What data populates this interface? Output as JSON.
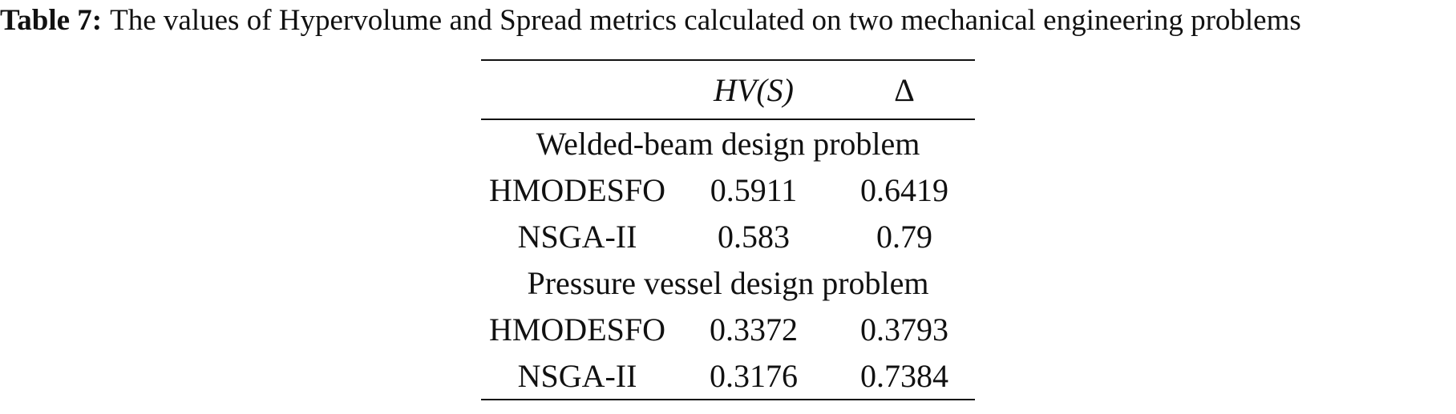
{
  "caption": {
    "label": "Table 7:",
    "text": "The values of Hypervolume and Spread metrics calculated on two mechanical engineering problems"
  },
  "table": {
    "headers": [
      "",
      "HV(S)",
      "Δ"
    ],
    "sections": [
      {
        "title": "Welded-beam design problem",
        "rows": [
          {
            "name": "HMODESFO",
            "hv": "0.5911",
            "delta": "0.6419"
          },
          {
            "name": "NSGA-II",
            "hv": "0.583",
            "delta": "0.79"
          }
        ]
      },
      {
        "title": "Pressure vessel design problem",
        "rows": [
          {
            "name": "HMODESFO",
            "hv": "0.3372",
            "delta": "0.3793"
          },
          {
            "name": "NSGA-II",
            "hv": "0.3176",
            "delta": "0.7384"
          }
        ]
      }
    ]
  }
}
